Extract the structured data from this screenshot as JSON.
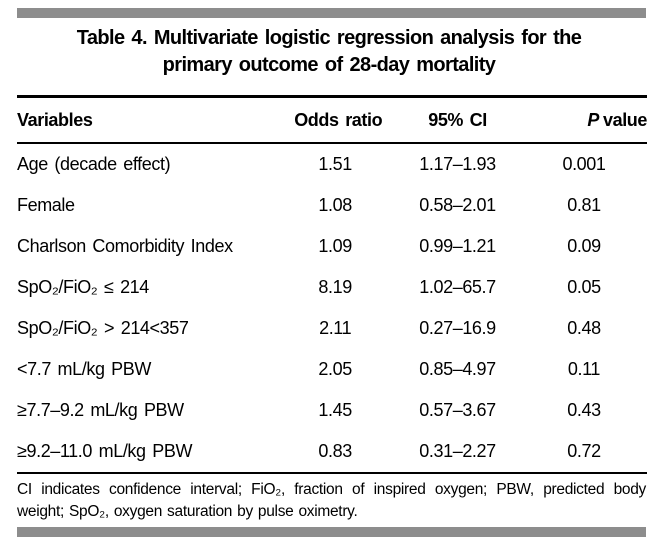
{
  "colors": {
    "divider_bar": "#8d8d8d",
    "rule": "#000000",
    "text": "#000000",
    "background": "#ffffff"
  },
  "table": {
    "title_lines": [
      "Table 4. Multivariate logistic regression analysis for the",
      "primary outcome of 28-day mortality"
    ],
    "columns": [
      "Variables",
      "Odds ratio",
      "95% CI"
    ],
    "p_header": {
      "italic": "P",
      "rest": "value"
    },
    "rows": [
      {
        "variable": "Age (decade effect)",
        "odds_ratio": "1.51",
        "ci": "1.17–1.93",
        "p": "0.001"
      },
      {
        "variable": "Female",
        "odds_ratio": "1.08",
        "ci": "0.58–2.01",
        "p": "0.81"
      },
      {
        "variable": "Charlson Comorbidity Index",
        "odds_ratio": "1.09",
        "ci": "0.99–1.21",
        "p": "0.09"
      },
      {
        "variable": "SpO₂/FiO₂ ≤ 214",
        "odds_ratio": "8.19",
        "ci": "1.02–65.7",
        "p": "0.05"
      },
      {
        "variable": "SpO₂/FiO₂ > 214<357",
        "odds_ratio": "2.11",
        "ci": "0.27–16.9",
        "p": "0.48"
      },
      {
        "variable": "<7.7 mL/kg PBW",
        "odds_ratio": "2.05",
        "ci": "0.85–4.97",
        "p": "0.11"
      },
      {
        "variable": "≥7.7–9.2 mL/kg PBW",
        "odds_ratio": "1.45",
        "ci": "0.57–3.67",
        "p": "0.43"
      },
      {
        "variable": "≥9.2–11.0 mL/kg PBW",
        "odds_ratio": "0.83",
        "ci": "0.31–2.27",
        "p": "0.72"
      }
    ],
    "footnote": "CI indicates confidence interval; FiO₂, fraction of inspired oxygen; PBW, predicted body weight; SpO₂, oxygen saturation by pulse oximetry."
  }
}
